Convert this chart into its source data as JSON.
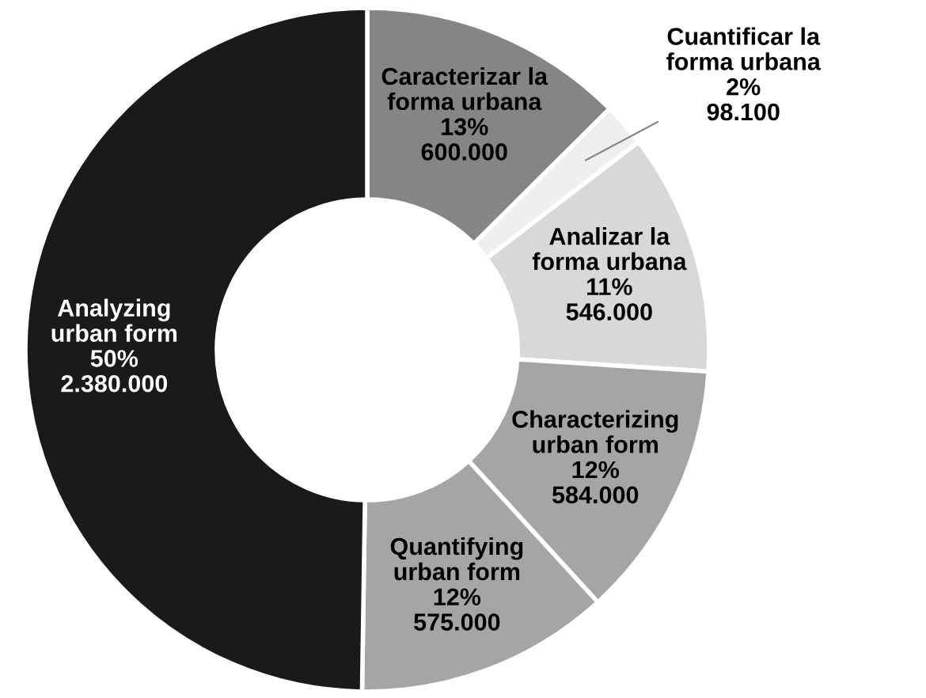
{
  "chart_data": {
    "type": "donut",
    "categories": [
      "Caracterizar la\nforma urbana",
      "Cuantificar la\nforma urbana",
      "Analizar la\nforma urbana",
      "Characterizing\nurban form",
      "Quantifying\nurban form",
      "Analyzing\nurban form"
    ],
    "values": [
      600000,
      98100,
      546000,
      584000,
      575000,
      2380000
    ],
    "value_labels": [
      "13%\n600.000",
      "2%\n98.100",
      "11%\n546.000",
      "12%\n584.000",
      "12%\n575.000",
      "50%\n2.380.000"
    ],
    "colors": [
      "#858585",
      "#efefef",
      "#d8d8d8",
      "#a5a5a5",
      "#a5a5a5",
      "#1a1a1a"
    ]
  }
}
